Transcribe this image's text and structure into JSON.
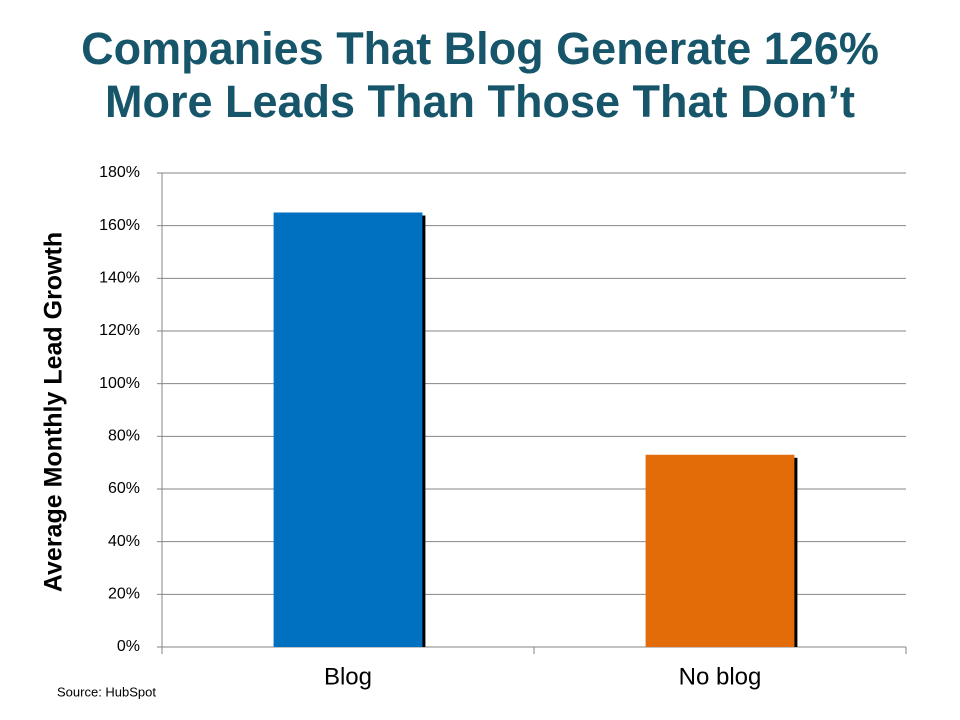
{
  "chart_data": {
    "type": "bar",
    "title": "Companies That Blog Generate 126% More Leads Than Those That Don’t",
    "y_label": "Average Monthly Lead Growth",
    "source": "Source: HubSpot",
    "categories": [
      "Blog",
      "No blog"
    ],
    "values": [
      165,
      73
    ],
    "colors": [
      "#0070c0",
      "#e36c09"
    ],
    "ylim": [
      0,
      180
    ],
    "yticks": [
      {
        "value": 0,
        "label": "0%"
      },
      {
        "value": 20,
        "label": "20%"
      },
      {
        "value": 40,
        "label": "40%"
      },
      {
        "value": 60,
        "label": "60%"
      },
      {
        "value": 80,
        "label": "80%"
      },
      {
        "value": 100,
        "label": "100%"
      },
      {
        "value": 120,
        "label": "120%"
      },
      {
        "value": 140,
        "label": "140%"
      },
      {
        "value": 160,
        "label": "160%"
      },
      {
        "value": 180,
        "label": "180%"
      }
    ],
    "grid": true
  }
}
